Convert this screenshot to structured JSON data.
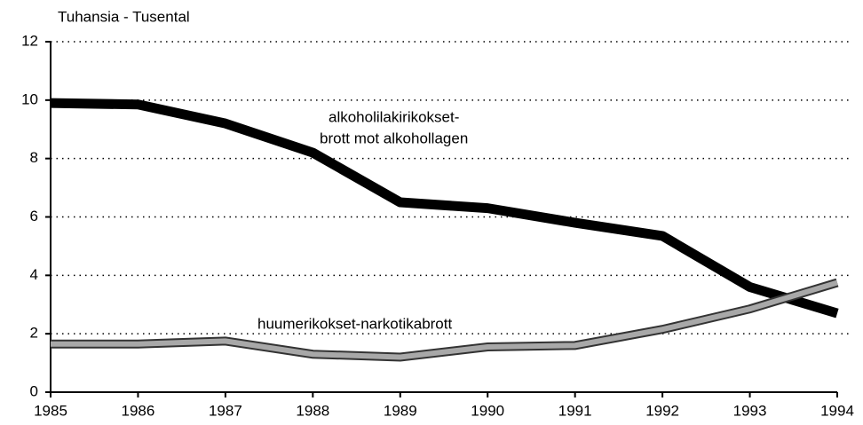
{
  "chart_data": {
    "type": "line",
    "axis_title": "Tuhansia - Tusental",
    "x": [
      1985,
      1986,
      1987,
      1988,
      1989,
      1990,
      1991,
      1992,
      1993,
      1994
    ],
    "xlim": [
      1985,
      1994
    ],
    "xticks": [
      1985,
      1986,
      1987,
      1988,
      1989,
      1990,
      1991,
      1992,
      1993,
      1994
    ],
    "ylim": [
      0,
      12
    ],
    "yticks": [
      0,
      2,
      4,
      6,
      8,
      10,
      12
    ],
    "grid": true,
    "series": [
      {
        "name": "alkoholilakirikokset-brott mot alkohollagen",
        "color": "#000000",
        "values": [
          9.9,
          9.85,
          9.2,
          8.2,
          6.5,
          6.3,
          5.8,
          5.35,
          3.6,
          2.7
        ]
      },
      {
        "name": "huumerikokset-narkotikabrott",
        "color": "#a8a8a8",
        "values": [
          1.65,
          1.65,
          1.75,
          1.3,
          1.2,
          1.55,
          1.6,
          2.15,
          2.85,
          3.75
        ]
      }
    ],
    "annotations": [
      "alkoholilakirikokset-",
      "brott mot alkohollagen",
      "huumerikokset-narkotikabrott"
    ]
  }
}
